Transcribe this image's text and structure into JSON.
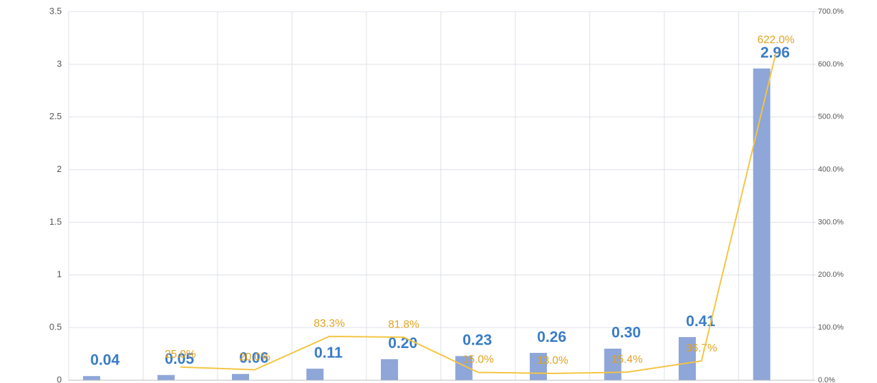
{
  "chart_data": {
    "type": "bar",
    "categories": [
      null,
      null,
      null,
      null,
      null,
      null,
      null,
      null,
      null,
      null
    ],
    "series": [
      {
        "type": "bar",
        "color": "#8ea6d8",
        "values": [
          0.04,
          0.05,
          0.06,
          0.11,
          0.2,
          0.23,
          0.26,
          0.3,
          0.41,
          2.96
        ],
        "value_labels": [
          "0.04",
          "0.05",
          "0.06",
          "0.11",
          "0.20",
          "0.23",
          "0.26",
          "0.30",
          "0.41",
          "2.96"
        ]
      },
      {
        "type": "line",
        "axis": "y2",
        "color": "#f5c441",
        "values": [
          null,
          25.0,
          20.0,
          83.3,
          81.8,
          15.0,
          13.0,
          15.4,
          36.7,
          622.0
        ],
        "value_labels": [
          null,
          "25.0%",
          "20.0%",
          "83.3%",
          "81.8%",
          "15.0%",
          "13.0%",
          "15.4%",
          "36.7%",
          "622.0%"
        ]
      }
    ],
    "ylim": [
      0,
      3.5
    ],
    "yticks": [
      0,
      0.5,
      1,
      1.5,
      2,
      2.5,
      3,
      3.5
    ],
    "y2lim": [
      0,
      700
    ],
    "y2ticks": [
      {
        "value": 0,
        "label": "0.0%"
      },
      {
        "value": 100,
        "label": "100.0%"
      },
      {
        "value": 200,
        "label": "200.0%"
      },
      {
        "value": 300,
        "label": "300.0%"
      },
      {
        "value": 400,
        "label": "400.0%"
      },
      {
        "value": 500,
        "label": "500.0%"
      },
      {
        "value": 600,
        "label": "600.0%"
      },
      {
        "value": 700,
        "label": "700.0%"
      }
    ],
    "grid": true
  }
}
